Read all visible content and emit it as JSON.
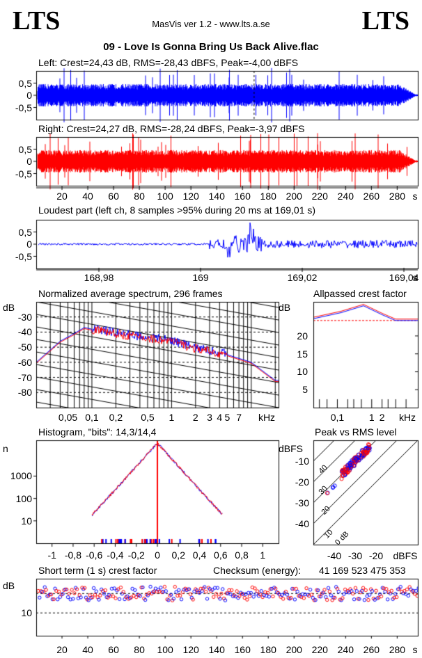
{
  "header": {
    "logo_left": "LTS",
    "logo_right": "LTS",
    "app": "MasVis ver 1.2 - www.lts.a.se",
    "file": "09 - Love Is Gonna Bring Us Back Alive.flac"
  },
  "colors": {
    "left": "#0000ff",
    "right": "#ff0000",
    "grid": "#000000"
  },
  "chart_data": [
    {
      "type": "line",
      "title": "Left: Crest=24,43 dB, RMS=-28,43 dBFS, Peak=-4,00 dBFS",
      "channel": "left",
      "ylim": [
        -1,
        1
      ],
      "yticks": [
        "0,5",
        "0",
        "-0,5"
      ],
      "xlim": [
        0,
        296
      ],
      "marker_x": 169.01,
      "envelope_peak": 0.45
    },
    {
      "type": "line",
      "title": "Right: Crest=24,27 dB, RMS=-28,24 dBFS, Peak=-3,97 dBFS",
      "channel": "right",
      "ylim": [
        -1,
        1
      ],
      "yticks": [
        "0,5",
        "0",
        "-0,5"
      ],
      "xlim": [
        0,
        296
      ],
      "xticks": [
        "20",
        "40",
        "60",
        "80",
        "100",
        "120",
        "140",
        "160",
        "180",
        "200",
        "220",
        "240",
        "260",
        "280"
      ],
      "xunit": "s"
    },
    {
      "type": "line",
      "title": "Loudest part (left  ch, 8 samples >95% during 20 ms at 169,01 s)",
      "yticks": [
        "0,5",
        "0",
        "-0,5"
      ],
      "xticks": [
        "168,98",
        "169",
        "169,02",
        "169,04"
      ],
      "xunit": "s"
    },
    {
      "type": "line",
      "title": "Normalized average spectrum, 296 frames",
      "ylabel": "dB",
      "yticks": [
        "-30",
        "-40",
        "-50",
        "-60",
        "-70",
        "-80"
      ],
      "xticks": [
        "0,05",
        "0,1",
        "0,2",
        "0,5",
        "1",
        "2",
        "3",
        "4",
        "5",
        "7"
      ],
      "xunit": "kHz",
      "scale": "log",
      "series": [
        {
          "x": [
            0.02,
            0.04,
            0.06,
            0.08,
            0.1,
            0.2,
            0.5,
            1,
            2,
            5,
            10,
            20
          ],
          "values": [
            -60,
            -46,
            -41,
            -37,
            -38,
            -41,
            -44,
            -46,
            -51,
            -55,
            -60,
            -72
          ]
        }
      ]
    },
    {
      "type": "line",
      "title": "Allpassed crest factor",
      "ylabel": "dB",
      "yticks": [
        "20",
        "15",
        "10",
        "5"
      ],
      "xticks": [
        "0,1",
        "1",
        "2"
      ],
      "xunit": "kHz",
      "ref_level": 24.3
    },
    {
      "type": "line",
      "title": "Histogram, \"bits\": 14,3/14,4",
      "ylabel": "n",
      "yticks": [
        "1000",
        "100",
        "10"
      ],
      "xticks": [
        "-1",
        "-0,8",
        "-0,6",
        "-0,4",
        "-0,2",
        "0",
        "0,2",
        "0,4",
        "0,6",
        "0,8",
        "1"
      ],
      "scale": "log"
    },
    {
      "type": "scatter",
      "title": "Peak vs RMS level",
      "ylabel": "dBFS",
      "yticks": [
        "-10",
        "-20",
        "-30",
        "-40"
      ],
      "xticks": [
        "-40",
        "-30",
        "-20"
      ],
      "xunit": "dBFS",
      "diag_labels": [
        "40",
        "30",
        "20",
        "10",
        "0 dB"
      ]
    },
    {
      "type": "scatter",
      "title": "Short term (1 s) crest factor",
      "ylabel": "dB",
      "yticks": [
        "10"
      ],
      "xticks": [
        "20",
        "40",
        "60",
        "80",
        "100",
        "120",
        "140",
        "160",
        "180",
        "200",
        "220",
        "240",
        "260",
        "280"
      ],
      "xunit": "s",
      "checksum_label": "Checksum (energy):",
      "checksum_value": "41 169 523 475 353"
    }
  ]
}
